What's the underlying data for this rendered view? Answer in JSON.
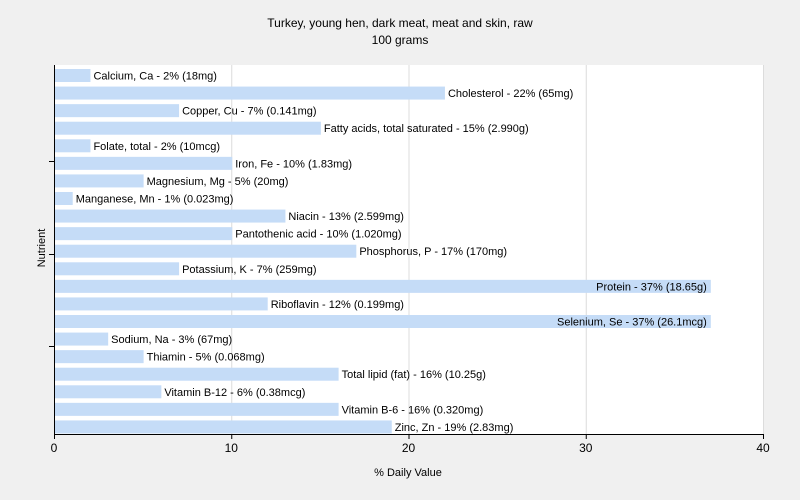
{
  "chart_data": {
    "type": "bar",
    "orientation": "horizontal",
    "title": "Turkey, young hen, dark meat, meat and skin, raw",
    "subtitle": "100 grams",
    "xlabel": "% Daily Value",
    "ylabel": "Nutrient",
    "xlim": [
      0,
      40
    ],
    "xticks": [
      0,
      10,
      20,
      30,
      40
    ],
    "grid": true,
    "colors": {
      "bar": "#c5dcf7",
      "background": "#f0f0f0",
      "plot_background": "#ffffff",
      "grid": "#dcdcdc",
      "axis": "#000000"
    },
    "categories": [
      "Calcium, Ca - 2% (18mg)",
      "Cholesterol - 22% (65mg)",
      "Copper, Cu - 7% (0.141mg)",
      "Fatty acids, total saturated - 15% (2.990g)",
      "Folate, total - 2% (10mcg)",
      "Iron, Fe - 10% (1.83mg)",
      "Magnesium, Mg - 5% (20mg)",
      "Manganese, Mn - 1% (0.023mg)",
      "Niacin - 13% (2.599mg)",
      "Pantothenic acid - 10% (1.020mg)",
      "Phosphorus, P - 17% (170mg)",
      "Potassium, K - 7% (259mg)",
      "Protein - 37% (18.65g)",
      "Riboflavin - 12% (0.199mg)",
      "Selenium, Se - 37% (26.1mcg)",
      "Sodium, Na - 3% (67mg)",
      "Thiamin - 5% (0.068mg)",
      "Total lipid (fat) - 16% (10.25g)",
      "Vitamin B-12 - 6% (0.38mcg)",
      "Vitamin B-6 - 16% (0.320mg)",
      "Zinc, Zn - 19% (2.83mg)"
    ],
    "values": [
      2,
      22,
      7,
      15,
      2,
      10,
      5,
      1,
      13,
      10,
      17,
      7,
      37,
      12,
      37,
      3,
      5,
      16,
      6,
      16,
      19
    ]
  }
}
